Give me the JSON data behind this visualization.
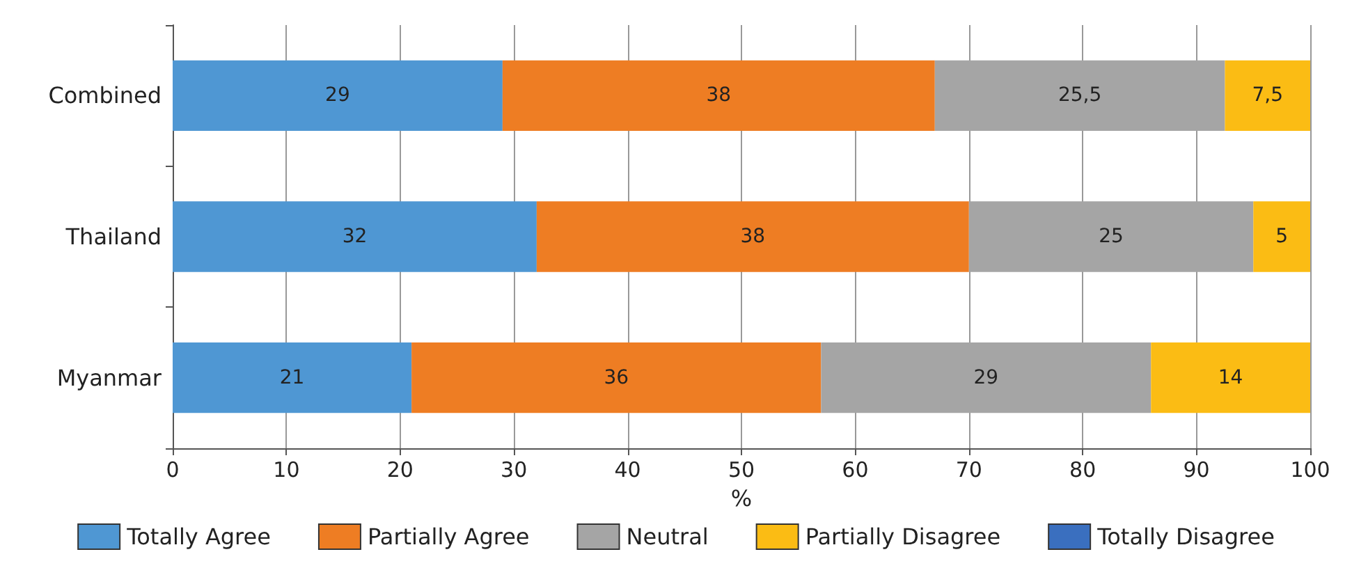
{
  "chart_data": {
    "type": "bar",
    "orientation": "horizontal",
    "stacked": true,
    "categories": [
      "Combined",
      "Thailand",
      "Myanmar"
    ],
    "series": [
      {
        "name": "Totally Agree",
        "color": "#4f97d3",
        "values": [
          29,
          32,
          21
        ],
        "value_labels": [
          "29",
          "32",
          "21"
        ]
      },
      {
        "name": "Partially Agree",
        "color": "#ee7d23",
        "values": [
          38,
          38,
          36
        ],
        "value_labels": [
          "38",
          "38",
          "36"
        ]
      },
      {
        "name": "Neutral",
        "color": "#a5a5a5",
        "values": [
          25.5,
          25,
          29
        ],
        "value_labels": [
          "25,5",
          "25",
          "29"
        ]
      },
      {
        "name": "Partially Disagree",
        "color": "#fbbc14",
        "values": [
          7.5,
          5,
          14
        ],
        "value_labels": [
          "7,5",
          "5",
          "14"
        ]
      },
      {
        "name": "Totally Disagree",
        "color": "#3a6fbf",
        "values": [
          0,
          0,
          0
        ],
        "value_labels": [
          null,
          null,
          null
        ]
      }
    ],
    "xlabel": "%",
    "xlim": [
      0,
      100
    ],
    "xticks": [
      0,
      10,
      20,
      30,
      40,
      50,
      60,
      70,
      80,
      90,
      100
    ],
    "grid": "x",
    "legend": "bottom"
  }
}
